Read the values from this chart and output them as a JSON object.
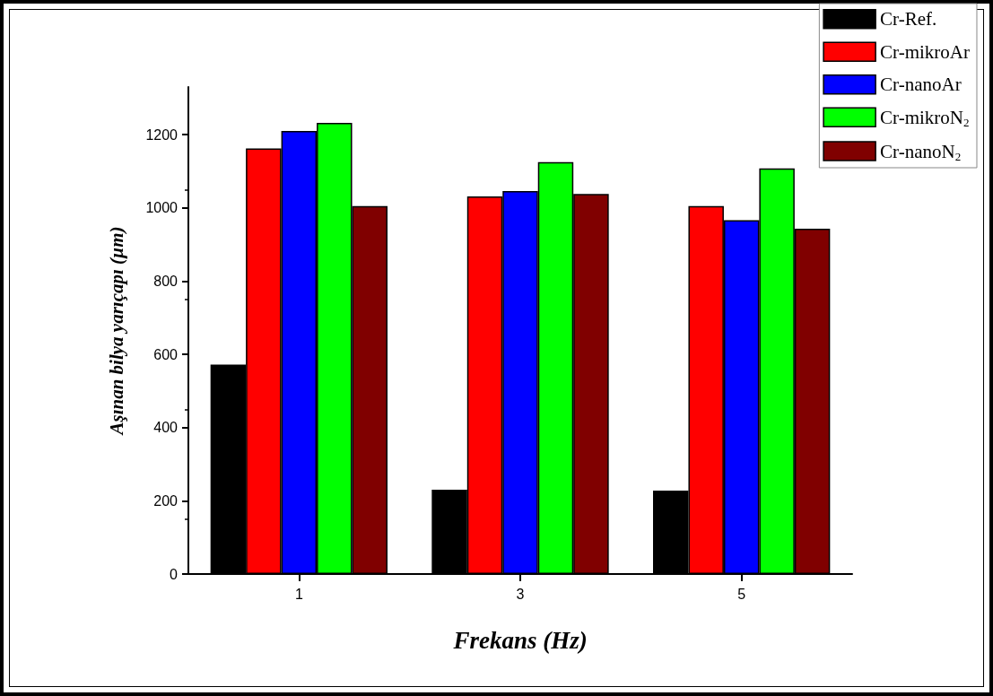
{
  "chart_data": {
    "type": "bar",
    "xlabel": "Frekans (Hz)",
    "ylabel": "Aşınan bilya yarıçapı (µm)",
    "categories": [
      "1",
      "3",
      "5"
    ],
    "series": [
      {
        "name": "Cr-Ref.",
        "color": "#000000",
        "values": [
          572,
          230,
          228
        ]
      },
      {
        "name": "Cr-mikroAr",
        "color": "#ff0000",
        "values": [
          1162,
          1031,
          1005
        ]
      },
      {
        "name": "Cr-nanoAr",
        "color": "#0000ff",
        "values": [
          1210,
          1046,
          966
        ]
      },
      {
        "name": "Cr-mikroN$_{2}$",
        "color": "#00ff00",
        "values": [
          1232,
          1125,
          1108
        ]
      },
      {
        "name": "Cr-nanoN$_{2}$",
        "color": "#800000",
        "values": [
          1005,
          1038,
          943
        ]
      }
    ],
    "ylim": [
      0,
      1330
    ],
    "yticks": [
      0,
      200,
      400,
      600,
      800,
      1000,
      1200
    ],
    "grid": false,
    "legend": "top right"
  }
}
